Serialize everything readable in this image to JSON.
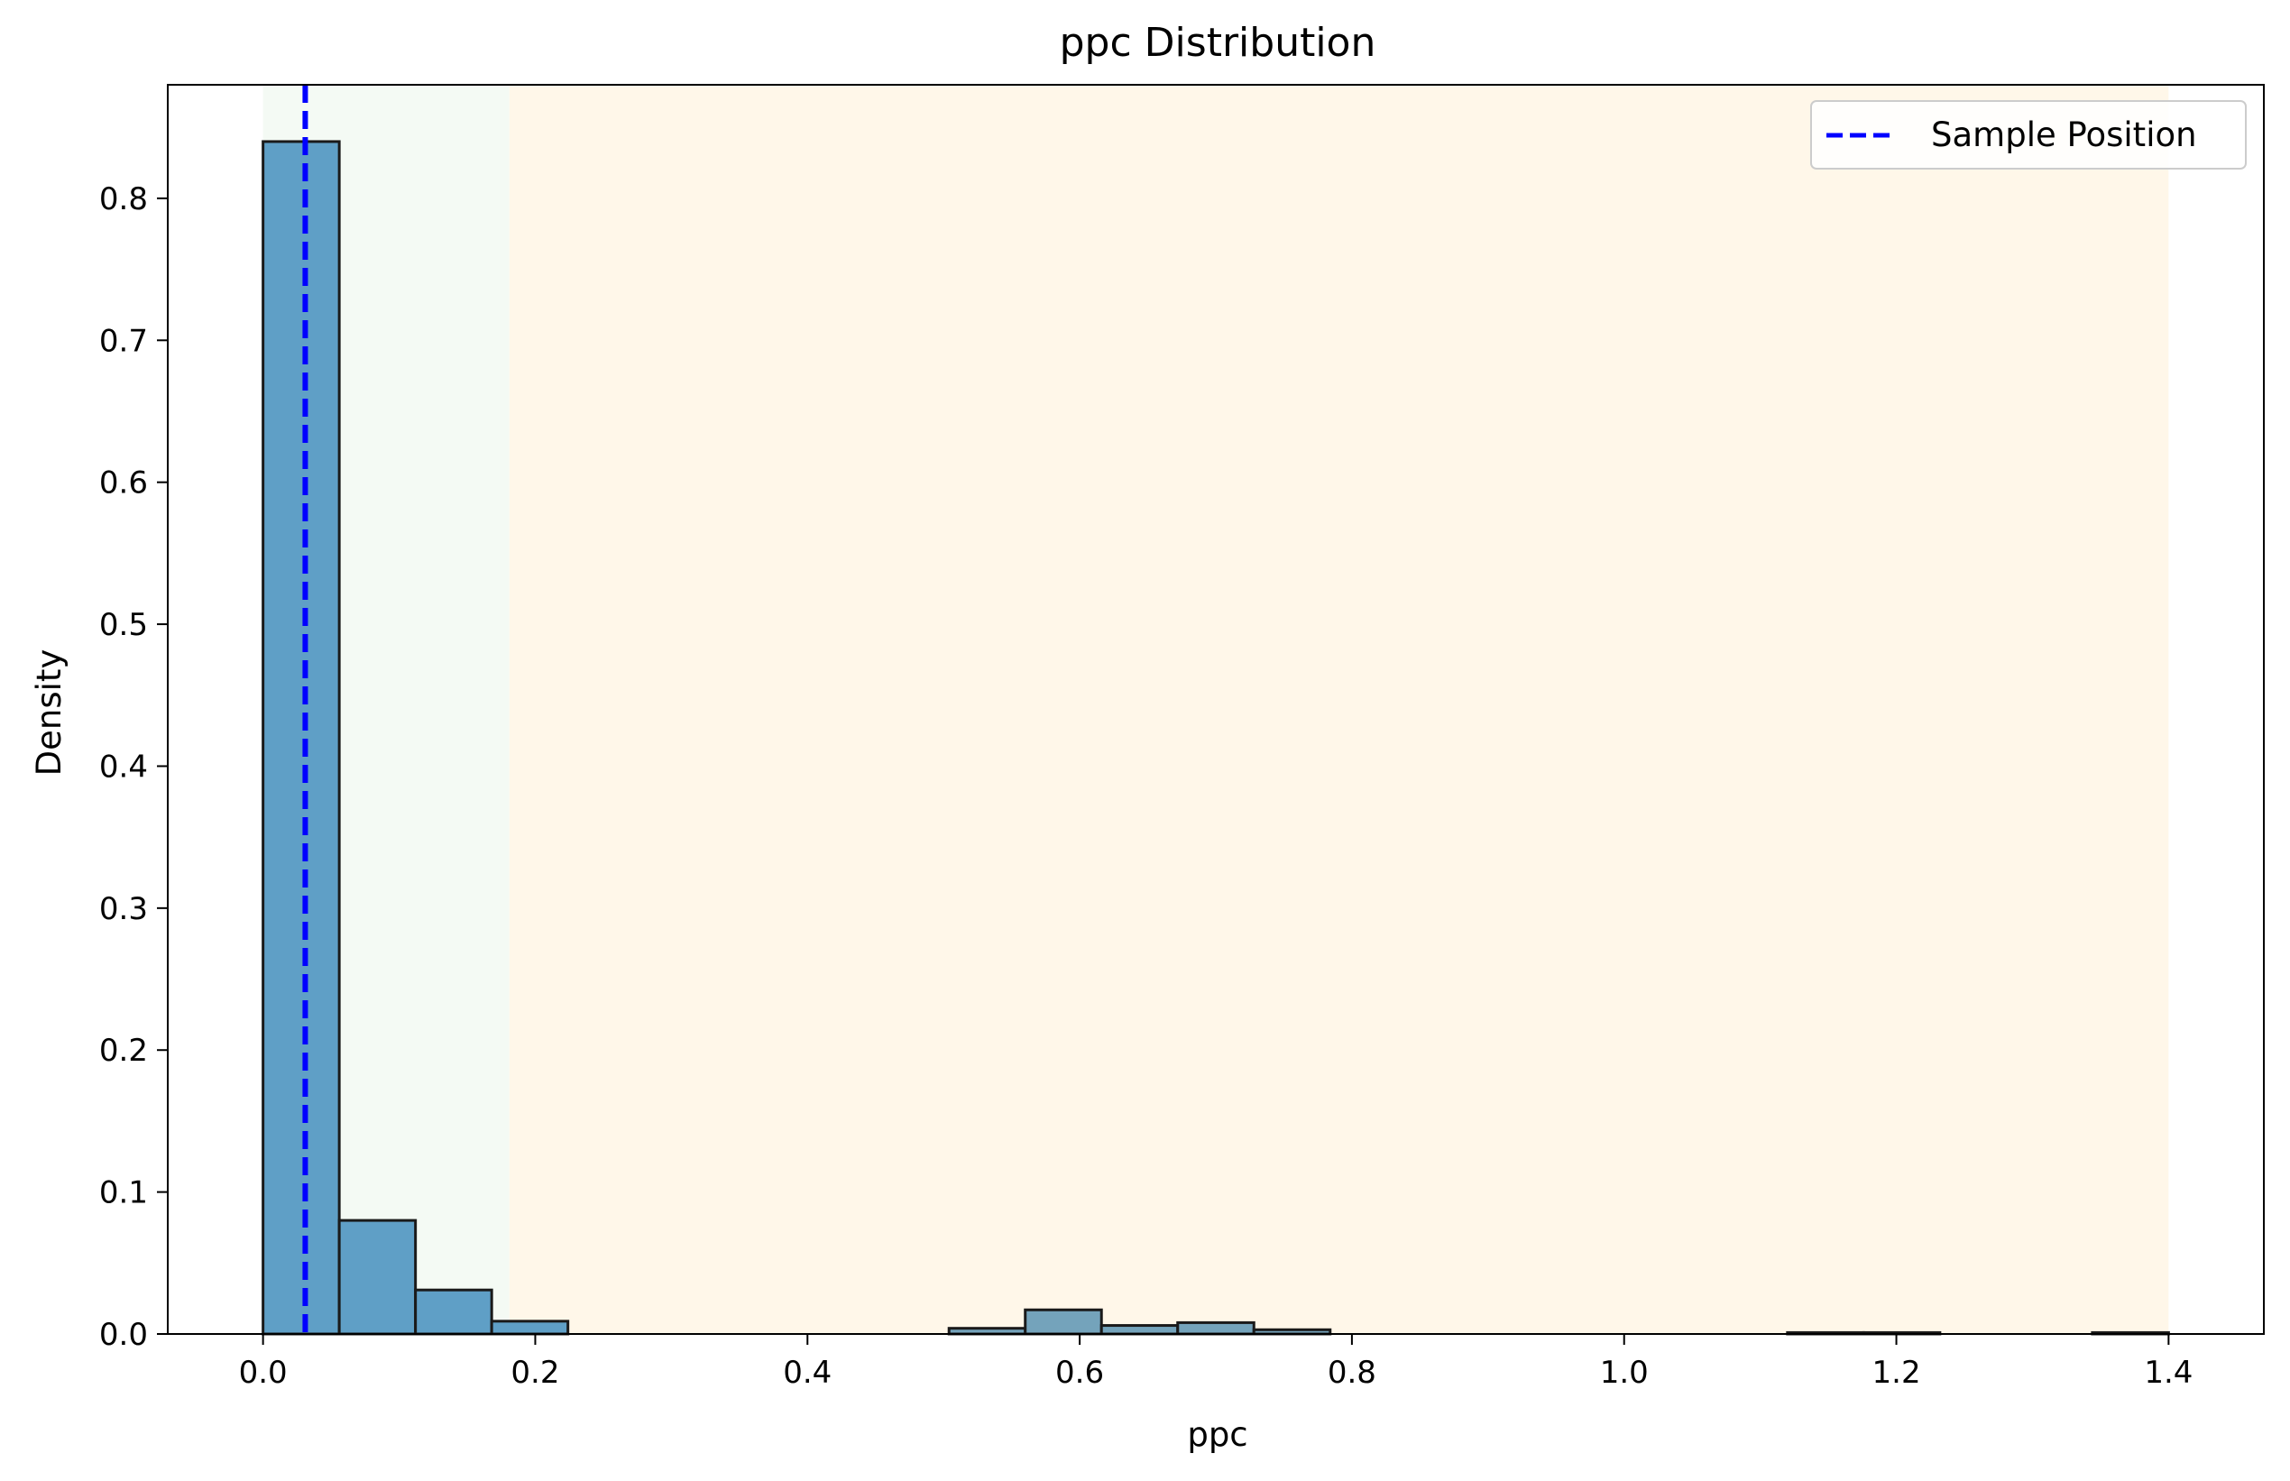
{
  "chart_data": {
    "type": "bar",
    "title": "ppc Distribution",
    "xlabel": "ppc",
    "ylabel": "Density",
    "xlim": [
      -0.07,
      1.47
    ],
    "ylim": [
      0,
      0.88
    ],
    "xticks": [
      0.0,
      0.2,
      0.4,
      0.6,
      0.8,
      1.0,
      1.2,
      1.4
    ],
    "xtick_labels": [
      "0.0",
      "0.2",
      "0.4",
      "0.6",
      "0.8",
      "1.0",
      "1.2",
      "1.4"
    ],
    "yticks": [
      0.0,
      0.1,
      0.2,
      0.3,
      0.4,
      0.5,
      0.6,
      0.7,
      0.8
    ],
    "ytick_labels": [
      "0.0",
      "0.1",
      "0.2",
      "0.3",
      "0.4",
      "0.5",
      "0.6",
      "0.7",
      "0.8"
    ],
    "bins": [
      {
        "x0": 0.0,
        "x1": 0.056,
        "value": 0.84
      },
      {
        "x0": 0.056,
        "x1": 0.112,
        "value": 0.08
      },
      {
        "x0": 0.112,
        "x1": 0.168,
        "value": 0.031
      },
      {
        "x0": 0.168,
        "x1": 0.224,
        "value": 0.009
      },
      {
        "x0": 0.504,
        "x1": 0.56,
        "value": 0.004
      },
      {
        "x0": 0.56,
        "x1": 0.616,
        "value": 0.017
      },
      {
        "x0": 0.616,
        "x1": 0.672,
        "value": 0.006
      },
      {
        "x0": 0.672,
        "x1": 0.728,
        "value": 0.008
      },
      {
        "x0": 0.728,
        "x1": 0.784,
        "value": 0.003
      },
      {
        "x0": 1.12,
        "x1": 1.176,
        "value": 0.001
      },
      {
        "x0": 1.176,
        "x1": 1.232,
        "value": 0.001
      },
      {
        "x0": 1.344,
        "x1": 1.4,
        "value": 0.001
      }
    ],
    "shaded_regions": [
      {
        "x0": 0.0,
        "x1": 0.181,
        "color": "#f4faf4"
      },
      {
        "x0": 0.181,
        "x1": 1.4,
        "color": "#fff7e9"
      }
    ],
    "sample_position": 0.031,
    "legend": {
      "placement": "top-right",
      "entries": [
        {
          "label": "Sample Position",
          "color": "#0000ff",
          "style": "dashed"
        }
      ]
    },
    "colors": {
      "bar_fill": "#5f9fc6",
      "bar_fill_muted": "#74a3bb",
      "bar_edge": "#1a1a1a",
      "marker": "#0000ff"
    },
    "grid": false
  }
}
